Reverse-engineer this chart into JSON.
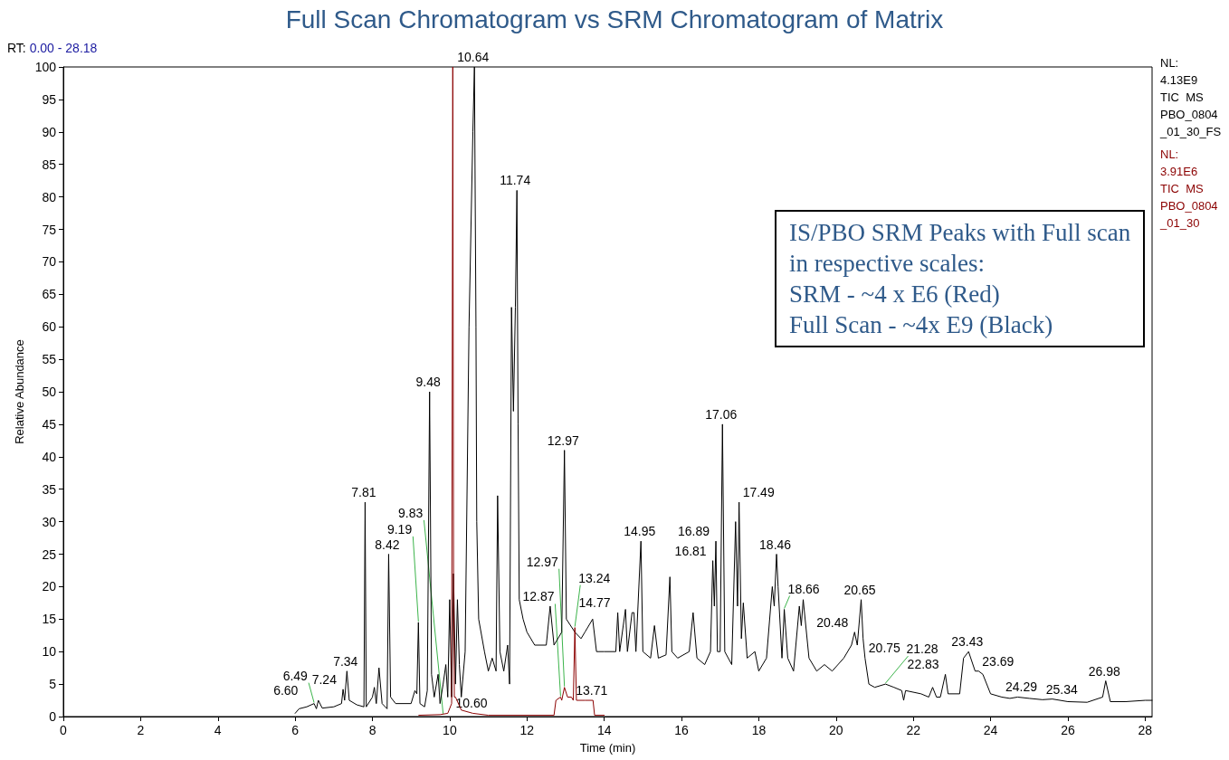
{
  "chart_data": {
    "type": "line",
    "title": "Full Scan Chromatogram vs SRM Chromatogram of Matrix",
    "xlabel": "Time (min)",
    "ylabel": "Relative Abundance",
    "series": [
      {
        "name": "NL:\n4.13E9\nTIC  MS\nPBO_0804\n_01_30_FS",
        "color": "#000000",
        "x": [
          6.0,
          6.1,
          6.3,
          6.49,
          6.55,
          6.6,
          6.7,
          7.0,
          7.2,
          7.24,
          7.28,
          7.34,
          7.4,
          7.6,
          7.78,
          7.81,
          7.84,
          8.0,
          8.05,
          8.1,
          8.17,
          8.25,
          8.38,
          8.42,
          8.47,
          8.6,
          9.0,
          9.1,
          9.15,
          9.19,
          9.23,
          9.35,
          9.42,
          9.48,
          9.53,
          9.6,
          9.7,
          9.75,
          9.83,
          9.9,
          9.95,
          10.0,
          10.05,
          10.1,
          10.15,
          10.2,
          10.25,
          10.3,
          10.4,
          10.5,
          10.6,
          10.64,
          10.68,
          10.7,
          10.75,
          10.9,
          11.0,
          11.1,
          11.2,
          11.24,
          11.3,
          11.4,
          11.5,
          11.55,
          11.6,
          11.65,
          11.7,
          11.74,
          11.77,
          11.8,
          11.9,
          12.0,
          12.2,
          12.5,
          12.6,
          12.7,
          12.9,
          12.97,
          13.02,
          13.24,
          13.4,
          13.5,
          13.7,
          13.8,
          14.0,
          14.3,
          14.35,
          14.4,
          14.55,
          14.6,
          14.72,
          14.77,
          14.82,
          14.95,
          15.0,
          15.2,
          15.3,
          15.4,
          15.6,
          15.7,
          15.75,
          15.9,
          16.2,
          16.3,
          16.4,
          16.6,
          16.75,
          16.81,
          16.85,
          16.89,
          16.93,
          17.0,
          17.06,
          17.12,
          17.3,
          17.4,
          17.45,
          17.49,
          17.55,
          17.6,
          17.7,
          17.9,
          18.0,
          18.2,
          18.35,
          18.4,
          18.46,
          18.5,
          18.6,
          18.66,
          18.75,
          18.9,
          19.05,
          19.1,
          19.15,
          19.3,
          19.5,
          19.7,
          19.9,
          20.2,
          20.4,
          20.48,
          20.55,
          20.65,
          20.7,
          20.75,
          20.85,
          21.0,
          21.28,
          21.5,
          21.7,
          21.75,
          21.8,
          22.2,
          22.4,
          22.5,
          22.6,
          22.7,
          22.83,
          22.9,
          23.2,
          23.3,
          23.43,
          23.6,
          23.69,
          23.8,
          24.0,
          24.29,
          24.5,
          24.7,
          25.0,
          25.34,
          25.6,
          26.0,
          26.5,
          26.9,
          26.98,
          27.1,
          27.5,
          28.0,
          28.18
        ],
        "values": [
          0.5,
          1.2,
          1.5,
          2.0,
          1.2,
          2.5,
          1.3,
          1.5,
          2.0,
          4.2,
          2.5,
          7.0,
          2.5,
          1.8,
          1.5,
          33,
          1.5,
          3,
          4.5,
          2,
          7.5,
          2,
          1.2,
          25,
          3,
          2,
          2,
          4,
          3.5,
          14.5,
          2,
          1.5,
          4,
          50,
          6.5,
          3,
          6.5,
          2,
          5,
          8,
          3,
          18,
          3,
          22,
          5,
          18,
          8,
          3,
          10,
          60,
          90,
          100,
          60,
          30,
          15,
          10,
          7,
          9,
          7,
          34,
          10,
          7,
          11,
          5,
          63,
          47,
          63,
          81,
          45,
          18,
          15,
          13,
          11,
          11,
          17,
          11,
          13,
          41,
          15,
          13,
          12,
          13,
          15,
          10,
          10,
          10,
          16,
          10,
          16.5,
          10,
          16,
          16,
          10,
          27,
          10,
          9,
          14,
          9,
          9.5,
          21.5,
          10,
          9,
          10,
          16,
          9,
          8,
          10,
          24,
          17,
          27,
          10,
          10,
          45,
          10,
          8,
          30,
          17,
          33,
          12,
          17.5,
          9,
          10,
          7,
          9,
          20,
          17,
          25,
          20,
          9,
          16.5,
          9,
          7,
          17,
          14,
          18,
          9,
          7,
          8,
          7,
          9,
          11,
          13,
          11,
          18,
          12,
          9,
          5,
          4.5,
          5,
          4.5,
          4,
          2.5,
          4,
          3.5,
          3,
          4.5,
          3,
          3,
          6.5,
          3.5,
          3.5,
          9,
          10,
          7,
          7,
          6.5,
          3.5,
          3,
          2.8,
          3,
          2.8,
          2.6,
          2.7,
          2.3,
          2.2,
          3,
          5.5,
          2.3,
          2.3,
          2.5,
          2.5
        ]
      },
      {
        "name": "NL:\n3.91E6\nTIC  MS\nPBO_0804\n_01_30",
        "color": "#8b0000",
        "x": [
          9.2,
          9.75,
          9.95,
          10.05,
          10.08,
          10.1,
          10.12,
          10.15,
          10.3,
          10.6,
          11.0,
          12.7,
          12.75,
          12.87,
          12.9,
          12.97,
          13.05,
          13.15,
          13.2,
          13.24,
          13.28,
          13.3,
          13.5,
          13.71,
          13.75,
          14.0
        ],
        "values": [
          0.2,
          0.3,
          0.5,
          2,
          100,
          22,
          3,
          3,
          1,
          0.5,
          0.2,
          0.2,
          2.5,
          3,
          2.5,
          4.5,
          3,
          3,
          2.5,
          13.7,
          2.5,
          2.5,
          2.5,
          2.5,
          0.2,
          0.2
        ]
      }
    ],
    "xlim": [
      0,
      28.18
    ],
    "xticks": [
      0,
      2,
      4,
      6,
      8,
      10,
      12,
      14,
      16,
      18,
      20,
      22,
      24,
      26,
      28
    ],
    "ylim": [
      0,
      100
    ],
    "yticks": [
      0,
      5,
      10,
      15,
      20,
      25,
      30,
      35,
      40,
      45,
      50,
      55,
      60,
      65,
      70,
      75,
      80,
      85,
      90,
      95,
      100
    ],
    "legend": "top right",
    "grid": false,
    "marker": "none",
    "annotations": [
      "RT: 0.00 - 28.18",
      "IS/PBO SRM Peaks with Full scan\nin respective scales:\nSRM - ~4 x E6 (Red)\nFull Scan - ~4x E9 (Black)",
      {
        "text": "10.64",
        "x": 10.64,
        "y": 100
      },
      {
        "text": "11.74",
        "x": 11.74,
        "y": 81
      },
      {
        "text": "9.48",
        "x": 9.48,
        "y": 50
      },
      {
        "text": "17.06",
        "x": 17.06,
        "y": 45
      },
      {
        "text": "12.97",
        "x": 12.97,
        "y": 41
      },
      {
        "text": "7.81",
        "x": 7.81,
        "y": 33
      },
      {
        "text": "17.49",
        "x": 17.49,
        "y": 33
      },
      {
        "text": "14.95",
        "x": 14.95,
        "y": 27
      },
      {
        "text": "16.89",
        "x": 16.89,
        "y": 27
      },
      {
        "text": "8.42",
        "x": 8.42,
        "y": 25
      },
      {
        "text": "18.46",
        "x": 18.46,
        "y": 25
      },
      {
        "text": "16.81",
        "x": 16.81,
        "y": 24
      },
      {
        "text": "20.65",
        "x": 20.65,
        "y": 18
      },
      {
        "text": "18.66",
        "x": 18.66,
        "y": 16.5
      },
      {
        "text": "14.77",
        "x": 14.77,
        "y": 16
      },
      {
        "text": "9.19",
        "x": 9.19,
        "y": 14.5
      },
      {
        "text": "13.24",
        "x": 13.24,
        "y": 13.7
      },
      {
        "text": "20.48",
        "x": 20.48,
        "y": 13
      },
      {
        "text": "23.43",
        "x": 23.43,
        "y": 10
      },
      {
        "text": "20.75",
        "x": 20.75,
        "y": 9
      },
      {
        "text": "7.34",
        "x": 7.34,
        "y": 7
      },
      {
        "text": "23.69",
        "x": 23.69,
        "y": 7
      },
      {
        "text": "22.83",
        "x": 22.83,
        "y": 6.5
      },
      {
        "text": "26.98",
        "x": 26.98,
        "y": 5.5
      },
      {
        "text": "21.28",
        "x": 21.28,
        "y": 5
      },
      {
        "text": "12.97",
        "x": 12.97,
        "y": 4.5
      },
      {
        "text": "7.24",
        "x": 7.24,
        "y": 4.2
      },
      {
        "text": "12.87",
        "x": 12.87,
        "y": 3
      },
      {
        "text": "24.29",
        "x": 24.29,
        "y": 3
      },
      {
        "text": "25.34",
        "x": 25.34,
        "y": 2.6
      },
      {
        "text": "13.71",
        "x": 13.71,
        "y": 2.5
      },
      {
        "text": "6.60",
        "x": 6.6,
        "y": 2.5
      },
      {
        "text": "6.49",
        "x": 6.49,
        "y": 2.0
      },
      {
        "text": "10.60",
        "x": 10.6,
        "y": 0.5
      },
      {
        "text": "9.83",
        "x": 9.83,
        "y": 0.3
      }
    ]
  }
}
